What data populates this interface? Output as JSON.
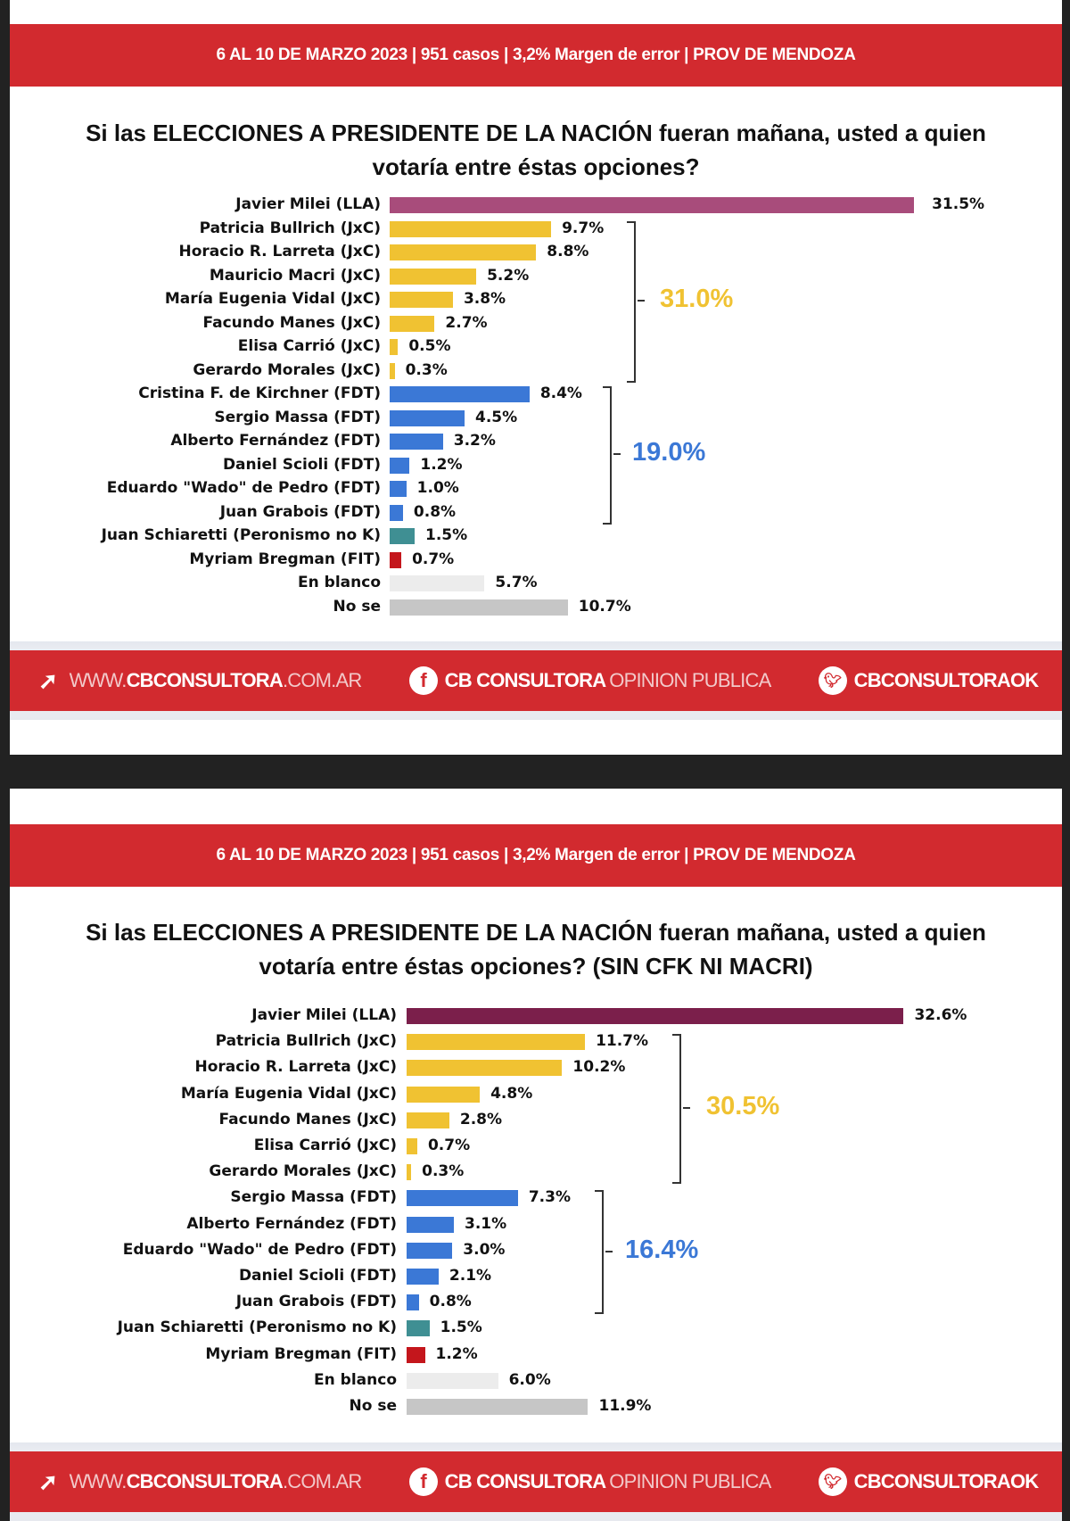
{
  "header_text": "6 AL 10 DE MARZO 2023 | 951 casos  |  3,2% Margen de error  | PROV DE MENDOZA",
  "footer": {
    "web_prefix": "WWW.",
    "web_brand": "CBCONSULTORA",
    "web_suffix": ".COM.AR",
    "facebook_brand": "CB CONSULTORA",
    "facebook_suffix": " OPINION PUBLICA",
    "twitter": "CBCONSULTORAOK",
    "icons": [
      "cursor-click-icon",
      "facebook-icon",
      "twitter-icon"
    ]
  },
  "colors": {
    "header": "#d22a2f",
    "jxc": "#f0c232",
    "fdt": "#3b78d6",
    "peronismo_no_k": "#3f8f93",
    "fit": "#c4161c",
    "en_blanco": "#ececec",
    "no_se": "#c6c6c6"
  },
  "chart_data": [
    {
      "type": "bar",
      "orientation": "horizontal",
      "title_line1": "Si las ELECCIONES A PRESIDENTE DE LA NACIÓN fueran mañana, usted a quien",
      "title_line2": "votaría entre éstas opciones?",
      "categories": [
        "Javier Milei (LLA)",
        "Patricia Bullrich (JxC)",
        "Horacio R. Larreta (JxC)",
        "Mauricio Macri (JxC)",
        "María Eugenia Vidal (JxC)",
        "Facundo Manes (JxC)",
        "Elisa Carrió (JxC)",
        "Gerardo Morales (JxC)",
        "Cristina F. de Kirchner (FDT)",
        "Sergio Massa (FDT)",
        "Alberto Fernández (FDT)",
        "Daniel Scioli (FDT)",
        "Eduardo \"Wado\" de Pedro (FDT)",
        "Juan Grabois (FDT)",
        "Juan Schiaretti (Peronismo no K)",
        "Myriam Bregman (FIT)",
        "En blanco",
        "No se"
      ],
      "values": [
        31.5,
        9.7,
        8.8,
        5.2,
        3.8,
        2.7,
        0.5,
        0.3,
        8.4,
        4.5,
        3.2,
        1.2,
        1.0,
        0.8,
        1.5,
        0.7,
        5.7,
        10.7
      ],
      "value_labels": [
        "31.5%",
        "9.7%",
        "8.8%",
        "5.2%",
        "3.8%",
        "2.7%",
        "0.5%",
        "0.3%",
        "8.4%",
        "4.5%",
        "3.2%",
        "1.2%",
        "1.0%",
        "0.8%",
        "1.5%",
        "0.7%",
        "5.7%",
        "10.7%"
      ],
      "colors": [
        "#a84c7b",
        "#f0c232",
        "#f0c232",
        "#f0c232",
        "#f0c232",
        "#f0c232",
        "#f0c232",
        "#f0c232",
        "#3b78d6",
        "#3b78d6",
        "#3b78d6",
        "#3b78d6",
        "#3b78d6",
        "#3b78d6",
        "#3f8f93",
        "#c4161c",
        "#ececec",
        "#c6c6c6"
      ],
      "groups": [
        {
          "name": "JxC",
          "from": 1,
          "to": 7,
          "total_label": "31.0%",
          "color": "#f0c232"
        },
        {
          "name": "FDT",
          "from": 8,
          "to": 13,
          "total_label": "19.0%",
          "color": "#3b78d6"
        }
      ]
    },
    {
      "type": "bar",
      "orientation": "horizontal",
      "title_line1": "Si las ELECCIONES A PRESIDENTE DE LA NACIÓN fueran mañana, usted a quien",
      "title_line2": "votaría entre éstas opciones? (SIN CFK NI MACRI)",
      "categories": [
        "Javier Milei (LLA)",
        "Patricia Bullrich (JxC)",
        "Horacio R. Larreta (JxC)",
        "María Eugenia Vidal (JxC)",
        "Facundo Manes (JxC)",
        "Elisa Carrió (JxC)",
        "Gerardo Morales (JxC)",
        "Sergio Massa (FDT)",
        "Alberto Fernández (FDT)",
        "Eduardo \"Wado\" de Pedro (FDT)",
        "Daniel Scioli (FDT)",
        "Juan Grabois (FDT)",
        "Juan Schiaretti (Peronismo no K)",
        "Myriam Bregman (FIT)",
        "En blanco",
        "No se"
      ],
      "values": [
        32.6,
        11.7,
        10.2,
        4.8,
        2.8,
        0.7,
        0.3,
        7.3,
        3.1,
        3.0,
        2.1,
        0.8,
        1.5,
        1.2,
        6.0,
        11.9
      ],
      "value_labels": [
        "32.6%",
        "11.7%",
        "10.2%",
        "4.8%",
        "2.8%",
        "0.7%",
        "0.3%",
        "7.3%",
        "3.1%",
        "3.0%",
        "2.1%",
        "0.8%",
        "1.5%",
        "1.2%",
        "6.0%",
        "11.9%"
      ],
      "colors": [
        "#7b1f4b",
        "#f0c232",
        "#f0c232",
        "#f0c232",
        "#f0c232",
        "#f0c232",
        "#f0c232",
        "#3b78d6",
        "#3b78d6",
        "#3b78d6",
        "#3b78d6",
        "#3b78d6",
        "#3f8f93",
        "#c4161c",
        "#ececec",
        "#c6c6c6"
      ],
      "groups": [
        {
          "name": "JxC",
          "from": 1,
          "to": 6,
          "total_label": "30.5%",
          "color": "#f0c232"
        },
        {
          "name": "FDT",
          "from": 7,
          "to": 11,
          "total_label": "16.4%",
          "color": "#3b78d6"
        }
      ]
    }
  ]
}
